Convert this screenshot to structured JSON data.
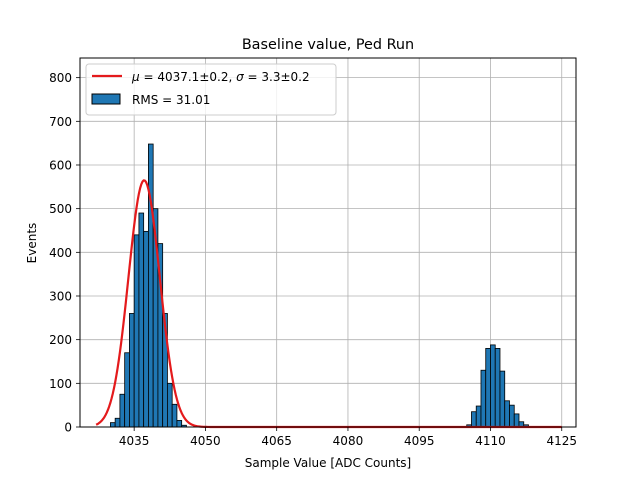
{
  "chart_data": {
    "type": "bar",
    "title": "Baseline value, Ped Run",
    "xlabel": "Sample Value [ADC Counts]",
    "ylabel": "Events",
    "xlim": [
      4023.6,
      4128.0
    ],
    "ylim": [
      0,
      845
    ],
    "x_ticks": [
      4035,
      4050,
      4065,
      4080,
      4095,
      4110,
      4125
    ],
    "y_ticks": [
      0,
      100,
      200,
      300,
      400,
      500,
      600,
      700,
      800
    ],
    "grid": true,
    "legend_position": "top-left",
    "colors": {
      "bars": "#1f77b4",
      "bar_edge": "#000000",
      "fit": "#e41a1c",
      "grid": "#b0b0b0"
    },
    "histogram": {
      "name": "RMS = 31.01",
      "bin_width": 1.0,
      "bins": [
        {
          "x0": 4030,
          "count": 10
        },
        {
          "x0": 4031,
          "count": 20
        },
        {
          "x0": 4032,
          "count": 75
        },
        {
          "x0": 4033,
          "count": 170
        },
        {
          "x0": 4034,
          "count": 260
        },
        {
          "x0": 4035,
          "count": 440
        },
        {
          "x0": 4036,
          "count": 490
        },
        {
          "x0": 4037,
          "count": 448
        },
        {
          "x0": 4038,
          "count": 648
        },
        {
          "x0": 4039,
          "count": 500
        },
        {
          "x0": 4040,
          "count": 420
        },
        {
          "x0": 4041,
          "count": 260
        },
        {
          "x0": 4042,
          "count": 100
        },
        {
          "x0": 4043,
          "count": 52
        },
        {
          "x0": 4044,
          "count": 15
        },
        {
          "x0": 4045,
          "count": 4
        },
        {
          "x0": 4105,
          "count": 5
        },
        {
          "x0": 4106,
          "count": 35
        },
        {
          "x0": 4107,
          "count": 48
        },
        {
          "x0": 4108,
          "count": 130
        },
        {
          "x0": 4109,
          "count": 180
        },
        {
          "x0": 4110,
          "count": 188
        },
        {
          "x0": 4111,
          "count": 180
        },
        {
          "x0": 4112,
          "count": 128
        },
        {
          "x0": 4113,
          "count": 60
        },
        {
          "x0": 4114,
          "count": 50
        },
        {
          "x0": 4115,
          "count": 30
        },
        {
          "x0": 4116,
          "count": 12
        },
        {
          "x0": 4117,
          "count": 5
        }
      ]
    },
    "fit": {
      "name_mu_sym": "μ",
      "name_mu_rest": " = 4037.1±0.2, ",
      "name_sigma_sym": "σ",
      "name_sigma_rest": " = 3.3±0.2",
      "mu": 4037.1,
      "sigma": 3.3,
      "amplitude": 565,
      "x_range": [
        4027.0,
        4125.0
      ]
    }
  }
}
